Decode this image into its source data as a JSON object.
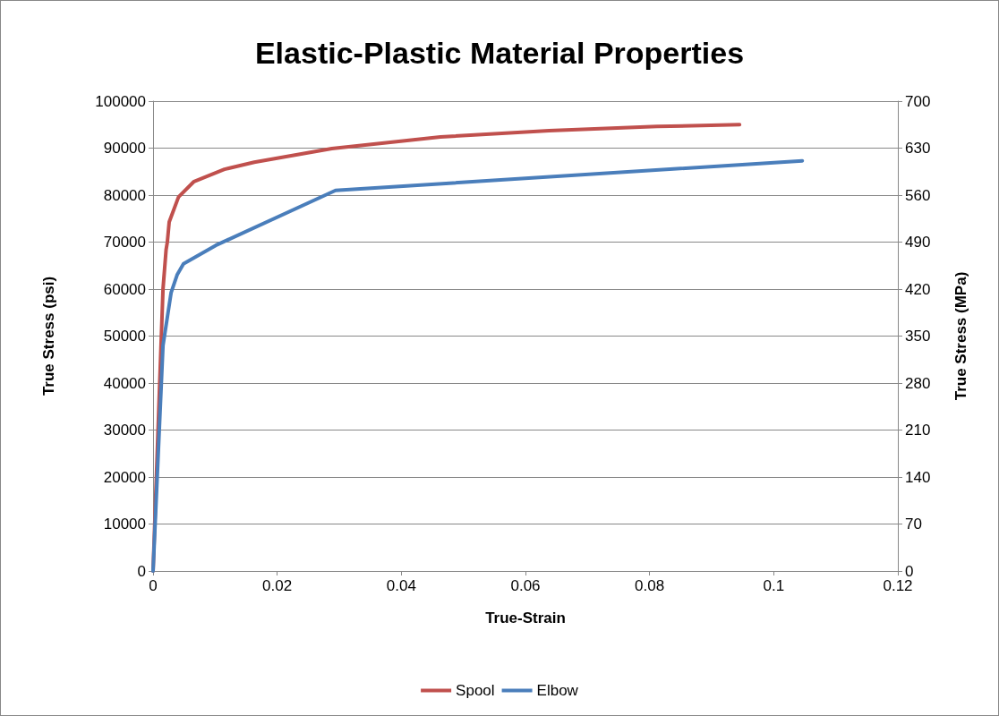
{
  "chart_data": {
    "type": "line",
    "title": "Elastic-Plastic Material Properties",
    "xlabel": "True-Strain",
    "ylabel": "True Stress (psi)",
    "y2label": "True Stress (MPa)",
    "xlim": [
      0,
      0.12
    ],
    "xticks": [
      0,
      0.02,
      0.04,
      0.06,
      0.08,
      0.1,
      0.12
    ],
    "ylim": [
      0,
      100000
    ],
    "yticks": [
      0,
      10000,
      20000,
      30000,
      40000,
      50000,
      60000,
      70000,
      80000,
      90000,
      100000
    ],
    "y2lim": [
      0,
      700
    ],
    "y2ticks": [
      0,
      70,
      140,
      210,
      280,
      350,
      420,
      490,
      560,
      630,
      700
    ],
    "grid": "y",
    "legend": "bottom",
    "marker": "none",
    "line_style": "solid",
    "series": [
      {
        "name": "Spool",
        "color": "#c0504d",
        "x": [
          0,
          0.0016,
          0.0021,
          0.0023,
          0.0026,
          0.0041,
          0.0066,
          0.0115,
          0.0163,
          0.0288,
          0.0463,
          0.0638,
          0.0812,
          0.0945
        ],
        "values": [
          0,
          60000,
          68400,
          70000,
          74300,
          79600,
          82900,
          85500,
          87000,
          89900,
          92400,
          93700,
          94600,
          95000
        ]
      },
      {
        "name": "Elbow",
        "color": "#4a7ebb",
        "x": [
          0,
          0.0016,
          0.0029,
          0.0039,
          0.0049,
          0.0101,
          0.0294,
          0.1046
        ],
        "values": [
          0,
          48000,
          59200,
          63100,
          65400,
          69300,
          81000,
          87300
        ]
      }
    ]
  }
}
